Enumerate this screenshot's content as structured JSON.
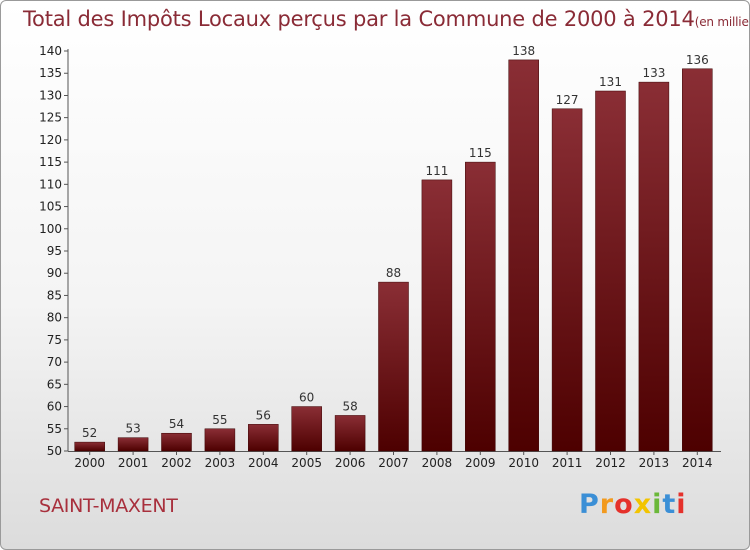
{
  "header": {
    "title": "Total des Impôts Locaux perçus par la Commune de 2000 à 2014",
    "unit": "(en milliers d'€)"
  },
  "footer": {
    "town": "SAINT-MAXENT",
    "logo_text": "Proxiti",
    "logo_colors": [
      "#3b8fd6",
      "#f29a1e",
      "#e5312b",
      "#f2c400",
      "#6bb83a",
      "#3b8fd6",
      "#e5312b"
    ]
  },
  "colors": {
    "bar_dark": "#4d0000",
    "bar_light": "#8a2e35",
    "title": "#8a2b36"
  },
  "chart_data": {
    "type": "bar",
    "title": "Total des Impôts Locaux perçus par la Commune de 2000 à 2014",
    "categories": [
      "2000",
      "2001",
      "2002",
      "2003",
      "2004",
      "2005",
      "2006",
      "2007",
      "2008",
      "2009",
      "2010",
      "2011",
      "2012",
      "2013",
      "2014"
    ],
    "values": [
      52,
      53,
      54,
      55,
      56,
      60,
      58,
      88,
      111,
      115,
      138,
      127,
      131,
      133,
      136
    ],
    "ylim": [
      50,
      140
    ],
    "yticks": [
      50,
      55,
      60,
      65,
      70,
      75,
      80,
      85,
      90,
      95,
      100,
      105,
      110,
      115,
      120,
      125,
      130,
      135,
      140
    ],
    "grid": false,
    "legend": "none",
    "xlabel": "",
    "ylabel": ""
  }
}
